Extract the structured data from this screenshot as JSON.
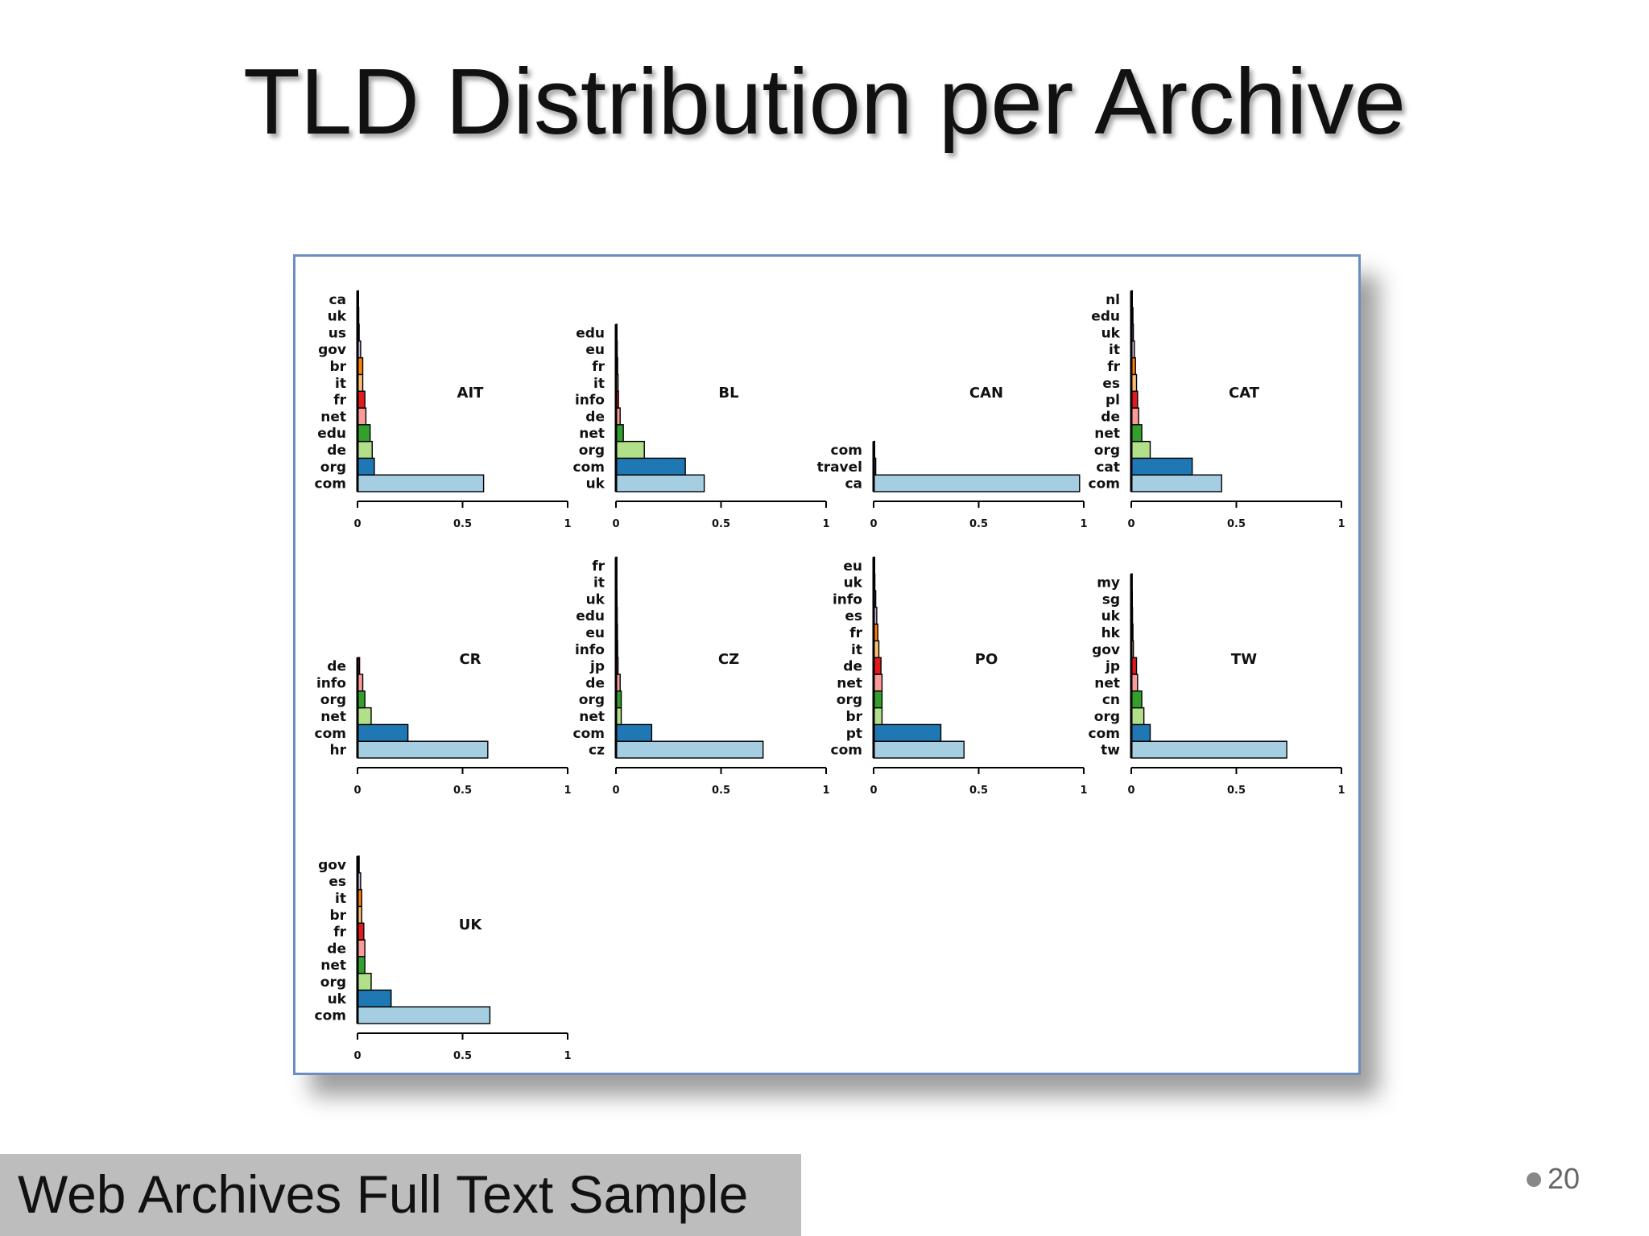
{
  "slide": {
    "title": "TLD Distribution per Archive",
    "footer": "Web Archives Full Text Sample",
    "page_number": "20"
  },
  "colors": [
    "#a6cee3",
    "#1f78b4",
    "#b2df8a",
    "#33a02c",
    "#fb9a99",
    "#e31a1c",
    "#fdbf6f",
    "#ff7f00",
    "#cab2d6",
    "#6a3d9a",
    "#ffff99",
    "#b15928"
  ],
  "chart_data": [
    {
      "type": "bar",
      "orientation": "horizontal",
      "title": "AIT",
      "categories": [
        "com",
        "org",
        "de",
        "edu",
        "net",
        "fr",
        "it",
        "br",
        "gov",
        "us",
        "uk",
        "ca"
      ],
      "values": [
        0.6,
        0.08,
        0.07,
        0.06,
        0.04,
        0.035,
        0.025,
        0.025,
        0.015,
        0.008,
        0.006,
        0.005
      ],
      "xlim": [
        0,
        1
      ],
      "xticks": [
        "0",
        "0.5",
        "1"
      ]
    },
    {
      "type": "bar",
      "orientation": "horizontal",
      "title": "BL",
      "categories": [
        "uk",
        "com",
        "org",
        "net",
        "de",
        "info",
        "it",
        "fr",
        "eu",
        "edu"
      ],
      "values": [
        0.42,
        0.33,
        0.135,
        0.035,
        0.02,
        0.012,
        0.01,
        0.008,
        0.006,
        0.005
      ],
      "xlim": [
        0,
        1
      ],
      "xticks": [
        "0",
        "0.5",
        "1"
      ]
    },
    {
      "type": "bar",
      "orientation": "horizontal",
      "title": "CAN",
      "categories": [
        "ca",
        "travel",
        "com"
      ],
      "values": [
        0.98,
        0.01,
        0.005
      ],
      "xlim": [
        0,
        1
      ],
      "xticks": [
        "0",
        "0.5",
        "1"
      ]
    },
    {
      "type": "bar",
      "orientation": "horizontal",
      "title": "CAT",
      "categories": [
        "com",
        "cat",
        "org",
        "net",
        "de",
        "pl",
        "es",
        "fr",
        "it",
        "uk",
        "edu",
        "nl"
      ],
      "values": [
        0.43,
        0.29,
        0.09,
        0.05,
        0.035,
        0.03,
        0.025,
        0.02,
        0.015,
        0.01,
        0.008,
        0.005
      ],
      "xlim": [
        0,
        1
      ],
      "xticks": [
        "0",
        "0.5",
        "1"
      ]
    },
    {
      "type": "bar",
      "orientation": "horizontal",
      "title": "CR",
      "categories": [
        "hr",
        "com",
        "net",
        "org",
        "info",
        "de"
      ],
      "values": [
        0.62,
        0.24,
        0.065,
        0.035,
        0.025,
        0.01
      ],
      "xlim": [
        0,
        1
      ],
      "xticks": [
        "0",
        "0.5",
        "1"
      ]
    },
    {
      "type": "bar",
      "orientation": "horizontal",
      "title": "CZ",
      "categories": [
        "cz",
        "com",
        "net",
        "org",
        "de",
        "jp",
        "info",
        "eu",
        "edu",
        "uk",
        "it",
        "fr"
      ],
      "values": [
        0.7,
        0.17,
        0.025,
        0.025,
        0.02,
        0.01,
        0.008,
        0.007,
        0.006,
        0.005,
        0.004,
        0.004
      ],
      "xlim": [
        0,
        1
      ],
      "xticks": [
        "0",
        "0.5",
        "1"
      ]
    },
    {
      "type": "bar",
      "orientation": "horizontal",
      "title": "PO",
      "categories": [
        "com",
        "pt",
        "br",
        "org",
        "net",
        "de",
        "it",
        "fr",
        "es",
        "info",
        "uk",
        "eu"
      ],
      "values": [
        0.43,
        0.32,
        0.04,
        0.04,
        0.04,
        0.035,
        0.025,
        0.02,
        0.015,
        0.01,
        0.006,
        0.005
      ],
      "xlim": [
        0,
        1
      ],
      "xticks": [
        "0",
        "0.5",
        "1"
      ]
    },
    {
      "type": "bar",
      "orientation": "horizontal",
      "title": "TW",
      "categories": [
        "tw",
        "com",
        "org",
        "cn",
        "net",
        "jp",
        "gov",
        "hk",
        "uk",
        "sg",
        "my"
      ],
      "values": [
        0.74,
        0.09,
        0.06,
        0.05,
        0.03,
        0.025,
        0.01,
        0.008,
        0.006,
        0.005,
        0.004
      ],
      "xlim": [
        0,
        1
      ],
      "xticks": [
        "0",
        "0.5",
        "1"
      ]
    },
    {
      "type": "bar",
      "orientation": "horizontal",
      "title": "UK",
      "categories": [
        "com",
        "uk",
        "org",
        "net",
        "de",
        "fr",
        "br",
        "it",
        "es",
        "gov"
      ],
      "values": [
        0.63,
        0.16,
        0.065,
        0.035,
        0.035,
        0.03,
        0.02,
        0.02,
        0.015,
        0.008
      ],
      "xlim": [
        0,
        1
      ],
      "xticks": [
        "0",
        "0.5",
        "1"
      ]
    }
  ]
}
